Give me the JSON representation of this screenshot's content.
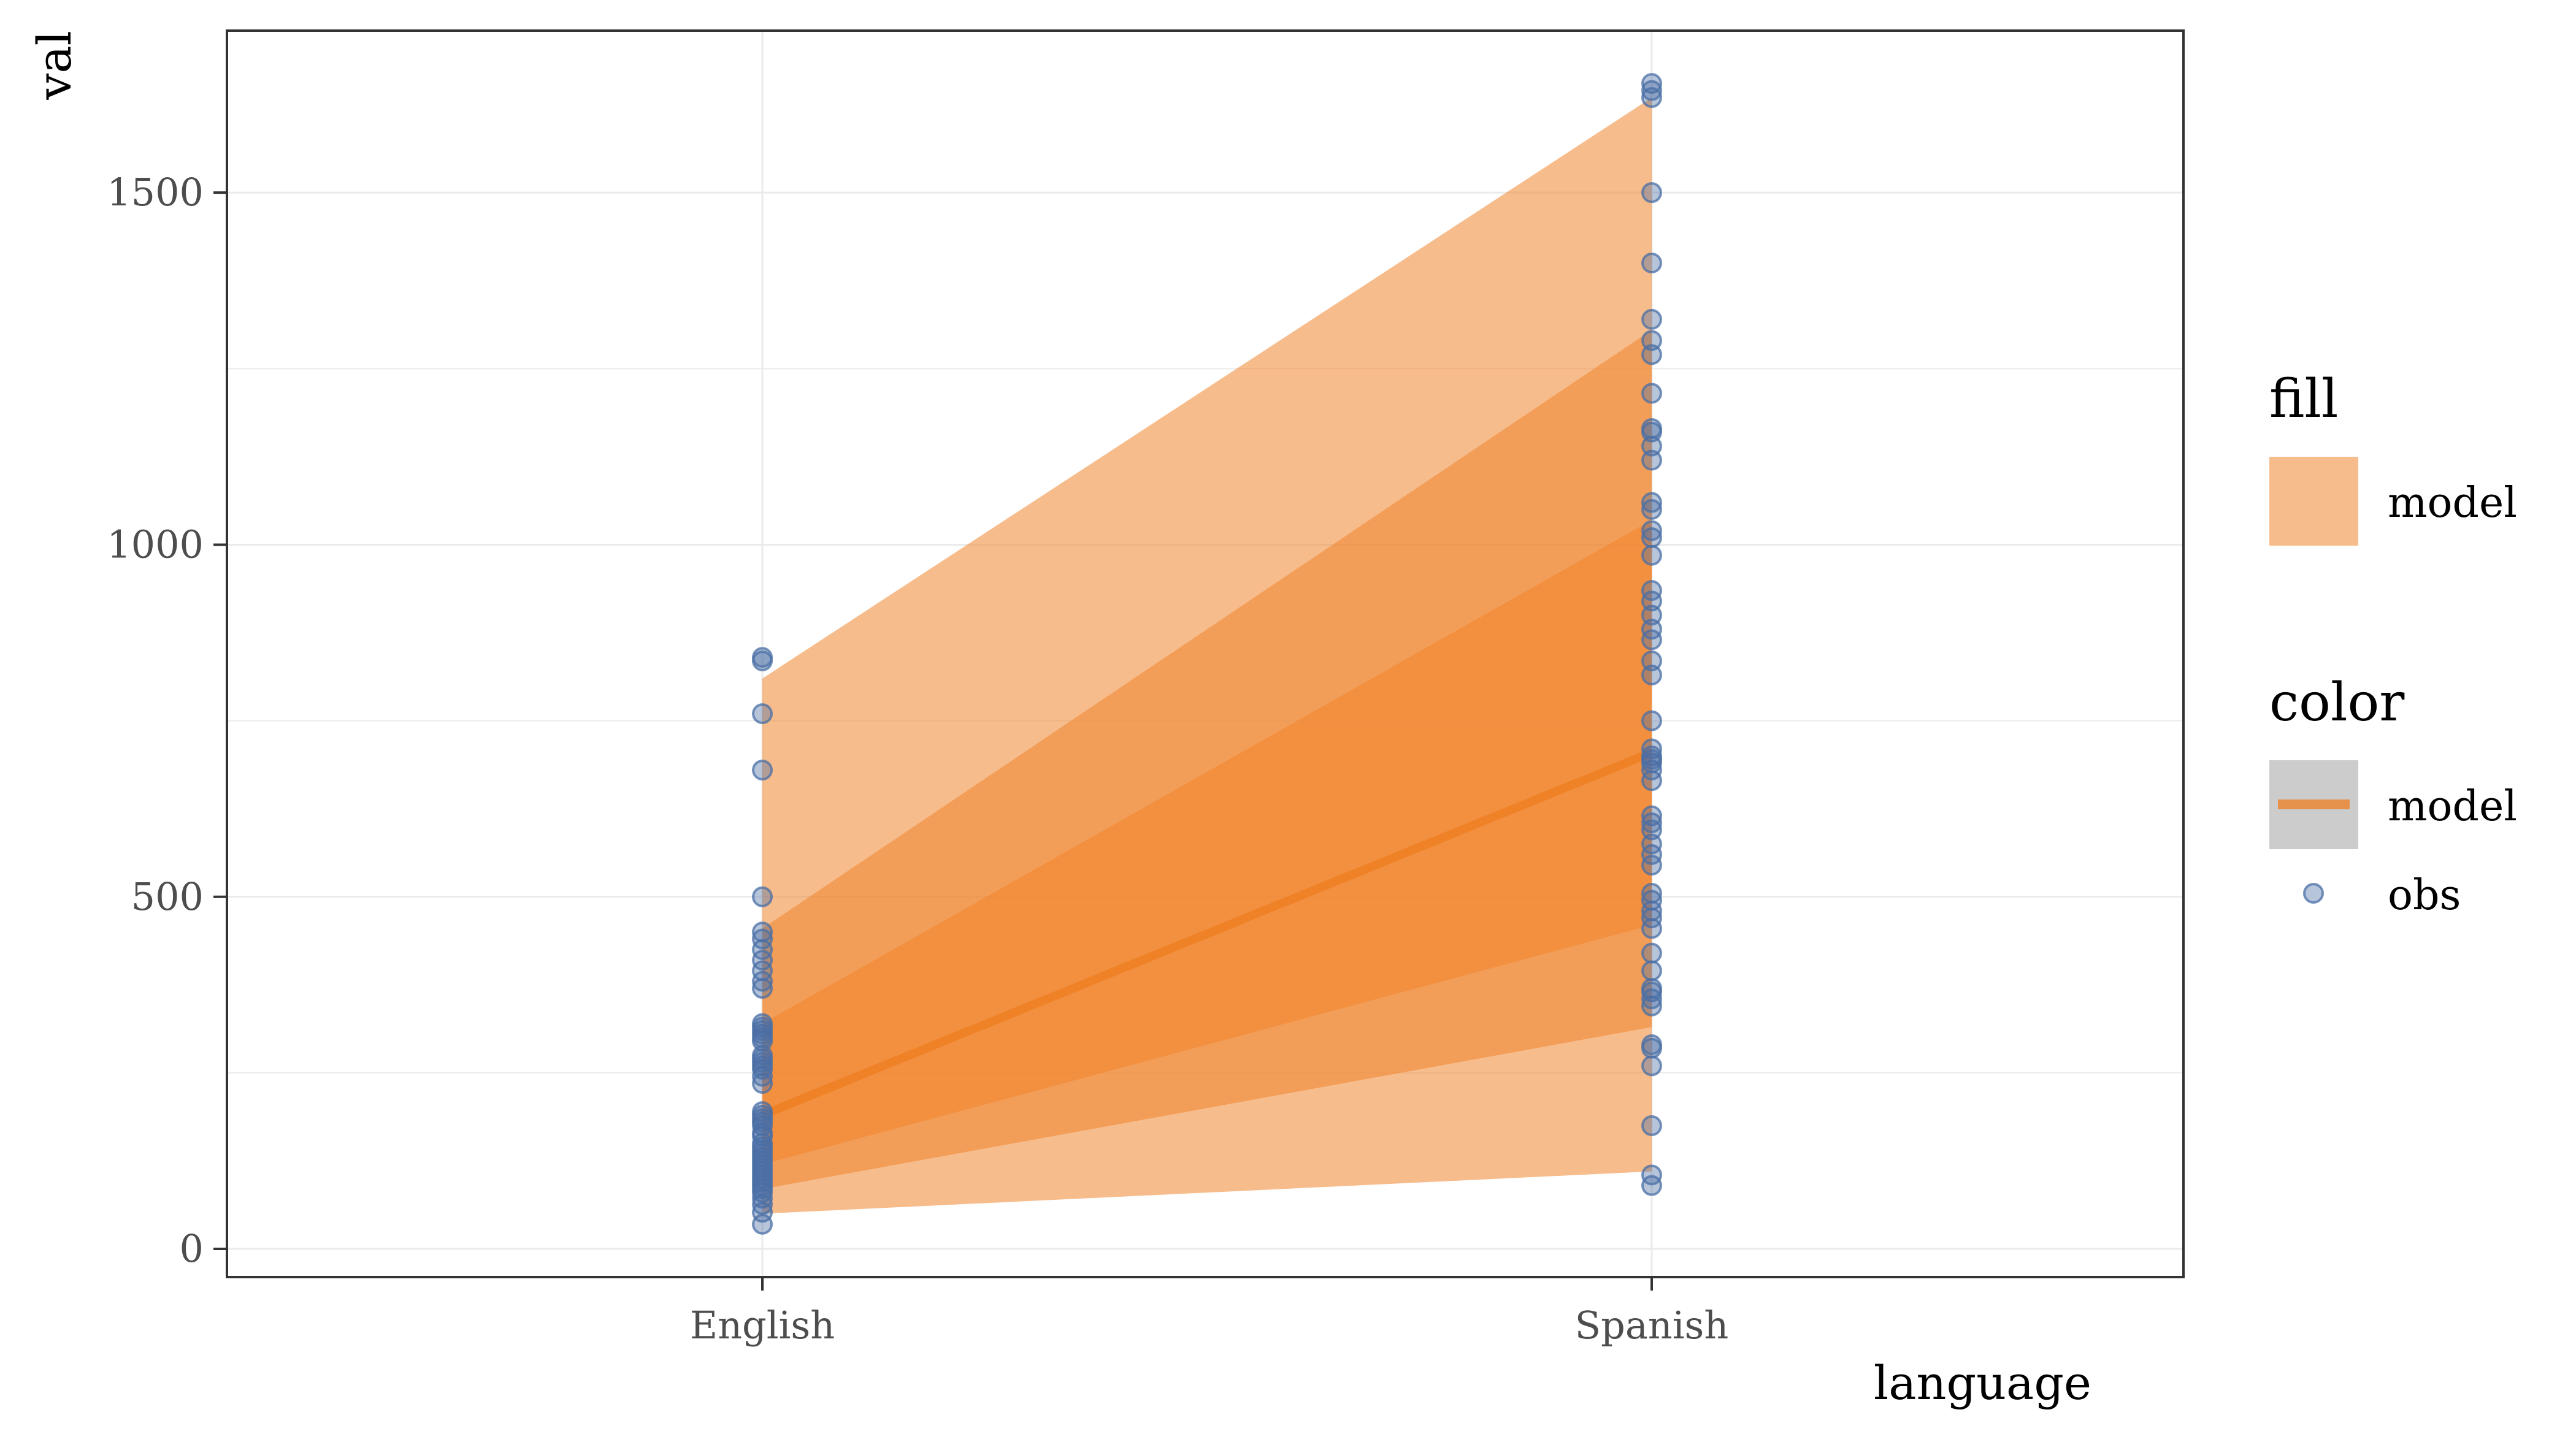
{
  "chart_data": {
    "type": "line",
    "xlabel": "language",
    "ylabel": "val",
    "categories": [
      "English",
      "Spanish"
    ],
    "ylim": [
      -40,
      1730
    ],
    "yticks": [
      0,
      500,
      1000,
      1500
    ],
    "grid": true,
    "legend_position": "right",
    "colors": {
      "band": "#f0852d",
      "line": "#ef7f22",
      "point": "#4a6fa5",
      "legend_key_bg": "#cccccc",
      "grid": "#ebebeb",
      "border": "#333333"
    },
    "bands": [
      {
        "name": "outer",
        "lower": [
          50,
          110
        ],
        "upper": [
          810,
          1635
        ]
      },
      {
        "name": "middle",
        "lower": [
          85,
          315
        ],
        "upper": [
          455,
          1305
        ]
      },
      {
        "name": "inner",
        "lower": [
          120,
          460
        ],
        "upper": [
          320,
          1035
        ]
      }
    ],
    "series": [
      {
        "name": "model",
        "values": [
          190,
          705
        ]
      }
    ],
    "points": {
      "name": "obs",
      "English": [
        35,
        52,
        63,
        72,
        80,
        85,
        90,
        95,
        100,
        105,
        110,
        115,
        120,
        125,
        130,
        135,
        140,
        145,
        150,
        160,
        165,
        175,
        180,
        185,
        190,
        195,
        235,
        245,
        255,
        260,
        265,
        270,
        275,
        295,
        300,
        305,
        310,
        315,
        320,
        370,
        380,
        395,
        410,
        425,
        440,
        450,
        500,
        680,
        760,
        835,
        840
      ],
      "Spanish": [
        90,
        105,
        175,
        260,
        285,
        290,
        345,
        355,
        365,
        370,
        395,
        420,
        455,
        470,
        480,
        495,
        505,
        545,
        560,
        575,
        595,
        605,
        615,
        665,
        680,
        690,
        695,
        700,
        710,
        750,
        815,
        835,
        865,
        880,
        900,
        920,
        935,
        985,
        1010,
        1020,
        1050,
        1060,
        1120,
        1140,
        1160,
        1165,
        1215,
        1270,
        1290,
        1320,
        1400,
        1500,
        1635,
        1645,
        1655
      ]
    },
    "legend": {
      "fill_title": "fill",
      "fill_label": "model",
      "color_title": "color",
      "color_labels": [
        "model",
        "obs"
      ]
    }
  }
}
